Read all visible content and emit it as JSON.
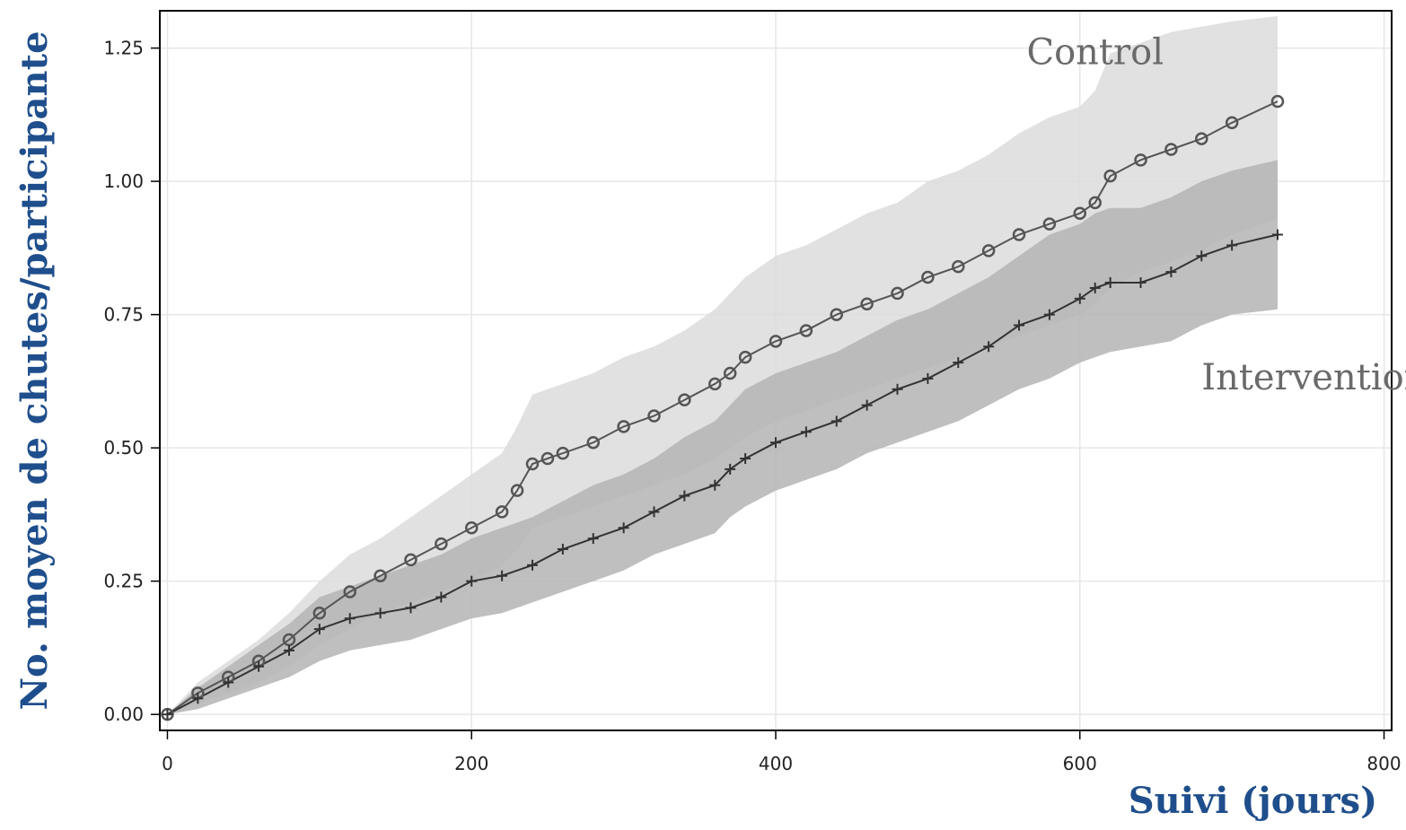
{
  "chart_data": {
    "type": "line",
    "title": "",
    "xlabel": "Suivi (jours)",
    "ylabel": "No. moyen de chutes/participante",
    "xlim": [
      -5,
      805
    ],
    "ylim": [
      -0.03,
      1.32
    ],
    "x_ticks": [
      0,
      200,
      400,
      600,
      800
    ],
    "x_tick_labels": [
      "0",
      "200",
      "400",
      "600",
      "800"
    ],
    "y_ticks": [
      0,
      0.25,
      0.5,
      0.75,
      1.0,
      1.25
    ],
    "y_tick_labels": [
      "0.00",
      "0.25",
      "0.50",
      "0.75",
      "1.00",
      "1.25"
    ],
    "grid": true,
    "legend": "none",
    "annotations": [
      {
        "text": "Control",
        "x": 565,
        "y": 1.22
      },
      {
        "text": "Intervention",
        "x": 680,
        "y": 0.61
      }
    ],
    "series": [
      {
        "name": "Control",
        "marker": "circle",
        "color": "#555555",
        "band_color": "#dcdcdc",
        "x": [
          0,
          20,
          40,
          60,
          80,
          100,
          120,
          140,
          160,
          180,
          200,
          220,
          230,
          240,
          250,
          260,
          280,
          300,
          320,
          340,
          360,
          370,
          380,
          400,
          420,
          440,
          460,
          480,
          500,
          520,
          540,
          560,
          580,
          600,
          610,
          620,
          640,
          660,
          680,
          700,
          730
        ],
        "values": [
          0.0,
          0.04,
          0.07,
          0.1,
          0.14,
          0.19,
          0.23,
          0.26,
          0.29,
          0.32,
          0.35,
          0.38,
          0.42,
          0.47,
          0.48,
          0.49,
          0.51,
          0.54,
          0.56,
          0.59,
          0.62,
          0.64,
          0.67,
          0.7,
          0.72,
          0.75,
          0.77,
          0.79,
          0.82,
          0.84,
          0.87,
          0.9,
          0.92,
          0.94,
          0.96,
          1.01,
          1.04,
          1.06,
          1.08,
          1.11,
          1.15
        ],
        "lower": [
          0.0,
          0.02,
          0.04,
          0.06,
          0.09,
          0.13,
          0.16,
          0.19,
          0.21,
          0.23,
          0.25,
          0.28,
          0.31,
          0.35,
          0.36,
          0.37,
          0.39,
          0.41,
          0.43,
          0.45,
          0.48,
          0.5,
          0.52,
          0.55,
          0.57,
          0.59,
          0.61,
          0.63,
          0.65,
          0.67,
          0.69,
          0.71,
          0.73,
          0.75,
          0.77,
          0.8,
          0.83,
          0.85,
          0.87,
          0.9,
          0.93
        ],
        "upper": [
          0.0,
          0.06,
          0.1,
          0.14,
          0.19,
          0.25,
          0.3,
          0.33,
          0.37,
          0.41,
          0.45,
          0.49,
          0.54,
          0.6,
          0.61,
          0.62,
          0.64,
          0.67,
          0.69,
          0.72,
          0.76,
          0.79,
          0.82,
          0.86,
          0.88,
          0.91,
          0.94,
          0.96,
          1.0,
          1.02,
          1.05,
          1.09,
          1.12,
          1.14,
          1.17,
          1.24,
          1.26,
          1.28,
          1.29,
          1.3,
          1.31
        ]
      },
      {
        "name": "Intervention",
        "marker": "plus",
        "color": "#333333",
        "band_color": "#b4b4b4",
        "x": [
          0,
          20,
          40,
          60,
          80,
          100,
          120,
          140,
          160,
          180,
          200,
          220,
          240,
          260,
          280,
          300,
          320,
          340,
          360,
          370,
          380,
          400,
          420,
          440,
          460,
          480,
          500,
          520,
          540,
          560,
          580,
          600,
          610,
          620,
          640,
          660,
          680,
          700,
          730
        ],
        "values": [
          0.0,
          0.03,
          0.06,
          0.09,
          0.12,
          0.16,
          0.18,
          0.19,
          0.2,
          0.22,
          0.25,
          0.26,
          0.28,
          0.31,
          0.33,
          0.35,
          0.38,
          0.41,
          0.43,
          0.46,
          0.48,
          0.51,
          0.53,
          0.55,
          0.58,
          0.61,
          0.63,
          0.66,
          0.69,
          0.73,
          0.75,
          0.78,
          0.8,
          0.81,
          0.81,
          0.83,
          0.86,
          0.88,
          0.9
        ],
        "lower": [
          0.0,
          0.01,
          0.03,
          0.05,
          0.07,
          0.1,
          0.12,
          0.13,
          0.14,
          0.16,
          0.18,
          0.19,
          0.21,
          0.23,
          0.25,
          0.27,
          0.3,
          0.32,
          0.34,
          0.37,
          0.39,
          0.42,
          0.44,
          0.46,
          0.49,
          0.51,
          0.53,
          0.55,
          0.58,
          0.61,
          0.63,
          0.66,
          0.67,
          0.68,
          0.69,
          0.7,
          0.73,
          0.75,
          0.76
        ],
        "upper": [
          0.0,
          0.05,
          0.09,
          0.13,
          0.17,
          0.22,
          0.24,
          0.26,
          0.28,
          0.3,
          0.33,
          0.35,
          0.37,
          0.4,
          0.43,
          0.45,
          0.48,
          0.52,
          0.55,
          0.58,
          0.61,
          0.64,
          0.66,
          0.68,
          0.71,
          0.74,
          0.76,
          0.79,
          0.82,
          0.86,
          0.9,
          0.92,
          0.94,
          0.95,
          0.95,
          0.97,
          1.0,
          1.02,
          1.04
        ]
      }
    ]
  }
}
